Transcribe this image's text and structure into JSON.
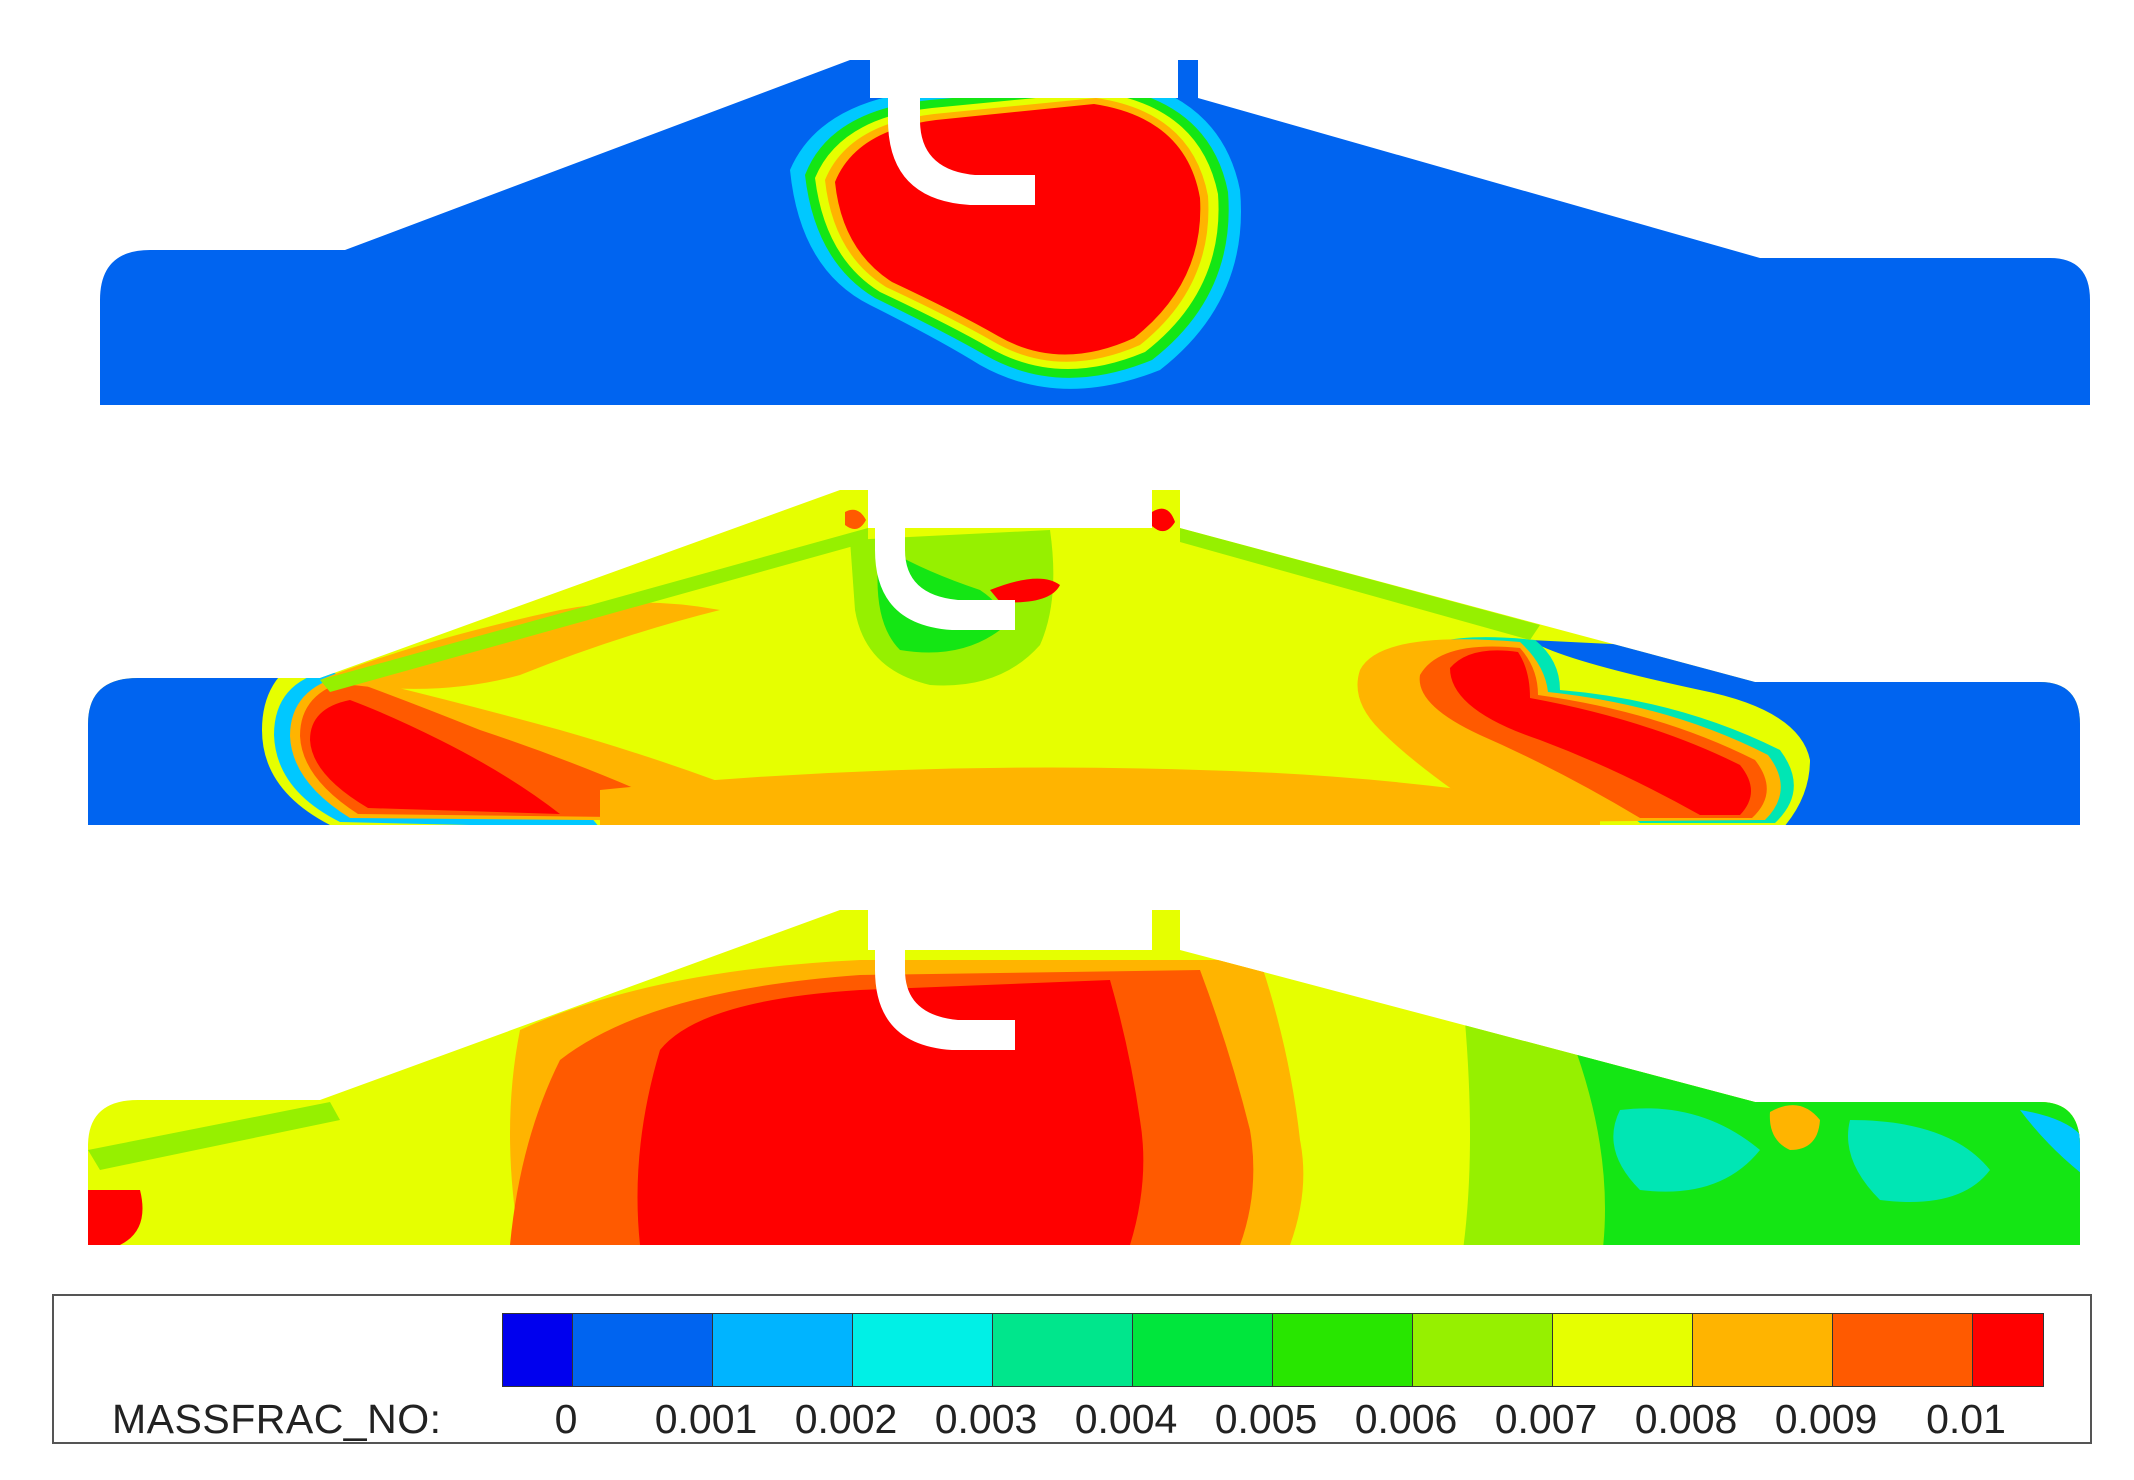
{
  "legend": {
    "variable": "MASSFRAC_NO:",
    "ticks": [
      "0",
      "0.001",
      "0.002",
      "0.003",
      "0.004",
      "0.005",
      "0.006",
      "0.007",
      "0.008",
      "0.009",
      "0.01"
    ],
    "colors": [
      "#0000ee",
      "#0064f0",
      "#00b4ff",
      "#00f0e6",
      "#00e68c",
      "#00e63c",
      "#28e600",
      "#96f000",
      "#e6ff00",
      "#ffb400",
      "#ff5a00",
      "#ff0000"
    ]
  },
  "palette": {
    "blue": "#0064f0",
    "cyan": "#00c8ff",
    "teal": "#00e6b4",
    "green": "#14e614",
    "lime": "#96f000",
    "yellow": "#e6ff00",
    "orange": "#ffb400",
    "dark_orange": "#ff5a00",
    "red": "#ff0000"
  },
  "panels": [
    {
      "name": "panel-top",
      "fill": "#0064f0"
    },
    {
      "name": "panel-middle",
      "fill": "#e6ff00"
    },
    {
      "name": "panel-bottom",
      "fill": "#e6ff00"
    }
  ]
}
